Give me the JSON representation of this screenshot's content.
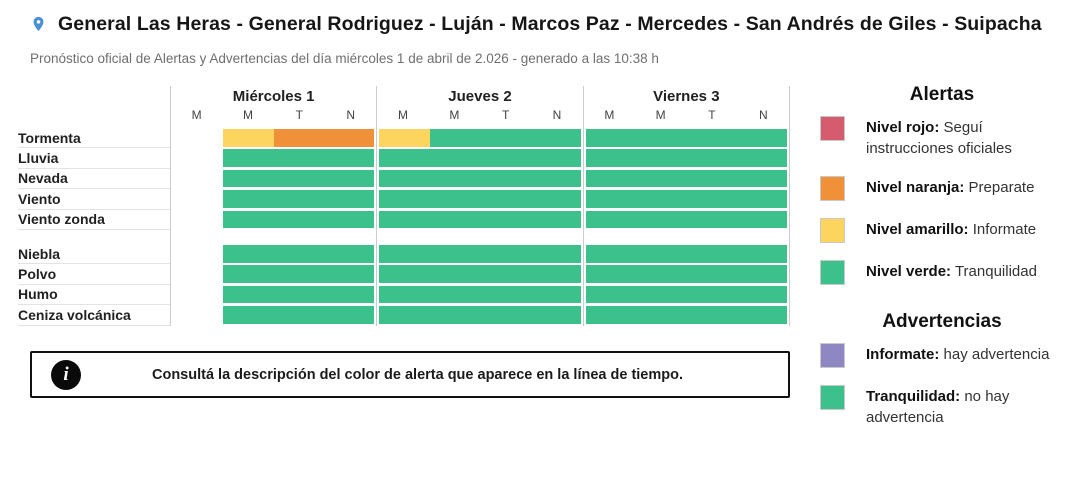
{
  "header": {
    "title": "General Las Heras - General Rodriguez - Luján - Marcos Paz - Mercedes - San Andrés de Giles - Suipacha",
    "subtitle": "Pronóstico oficial de Alertas y Advertencias del día miércoles 1 de abril de 2.026 - generado a las 10:38 h",
    "pin_color": "#4a90d5"
  },
  "timeline": {
    "days": [
      {
        "name": "Miércoles 1",
        "periods": [
          "M",
          "M",
          "T",
          "N"
        ]
      },
      {
        "name": "Jueves 2",
        "periods": [
          "M",
          "M",
          "T",
          "N"
        ]
      },
      {
        "name": "Viernes 3",
        "periods": [
          "M",
          "M",
          "T",
          "N"
        ]
      }
    ],
    "colors": {
      "green": "#3cc18d",
      "yellow": "#fdd55e",
      "orange": "#f0913a",
      "red": "#d55c6e",
      "purple": "#8f86c4",
      "none": "transparent"
    },
    "groups": [
      {
        "rows": [
          {
            "label": "Tormenta",
            "cells": [
              [
                "none",
                "yellow",
                "orange",
                "orange"
              ],
              [
                "yellow",
                "green",
                "green",
                "green"
              ],
              [
                "green",
                "green",
                "green",
                "green"
              ]
            ]
          },
          {
            "label": "Lluvia",
            "cells": [
              [
                "none",
                "green",
                "green",
                "green"
              ],
              [
                "green",
                "green",
                "green",
                "green"
              ],
              [
                "green",
                "green",
                "green",
                "green"
              ]
            ]
          },
          {
            "label": "Nevada",
            "cells": [
              [
                "none",
                "green",
                "green",
                "green"
              ],
              [
                "green",
                "green",
                "green",
                "green"
              ],
              [
                "green",
                "green",
                "green",
                "green"
              ]
            ]
          },
          {
            "label": "Viento",
            "cells": [
              [
                "none",
                "green",
                "green",
                "green"
              ],
              [
                "green",
                "green",
                "green",
                "green"
              ],
              [
                "green",
                "green",
                "green",
                "green"
              ]
            ]
          },
          {
            "label": "Viento zonda",
            "cells": [
              [
                "none",
                "green",
                "green",
                "green"
              ],
              [
                "green",
                "green",
                "green",
                "green"
              ],
              [
                "green",
                "green",
                "green",
                "green"
              ]
            ]
          }
        ]
      },
      {
        "rows": [
          {
            "label": "Niebla",
            "cells": [
              [
                "none",
                "green",
                "green",
                "green"
              ],
              [
                "green",
                "green",
                "green",
                "green"
              ],
              [
                "green",
                "green",
                "green",
                "green"
              ]
            ]
          },
          {
            "label": "Polvo",
            "cells": [
              [
                "none",
                "green",
                "green",
                "green"
              ],
              [
                "green",
                "green",
                "green",
                "green"
              ],
              [
                "green",
                "green",
                "green",
                "green"
              ]
            ]
          },
          {
            "label": "Humo",
            "cells": [
              [
                "none",
                "green",
                "green",
                "green"
              ],
              [
                "green",
                "green",
                "green",
                "green"
              ],
              [
                "green",
                "green",
                "green",
                "green"
              ]
            ]
          },
          {
            "label": "Ceniza volcánica",
            "cells": [
              [
                "none",
                "green",
                "green",
                "green"
              ],
              [
                "green",
                "green",
                "green",
                "green"
              ],
              [
                "green",
                "green",
                "green",
                "green"
              ]
            ]
          }
        ]
      }
    ]
  },
  "info": {
    "text": "Consultá la descripción del color de alerta que aparece en la línea de tiempo.",
    "icon": "info-i"
  },
  "legend": {
    "alerts_title": "Alertas",
    "alerts": [
      {
        "color": "#d55c6e",
        "name": "Nivel rojo:",
        "desc": " Seguí instrucciones oficiales"
      },
      {
        "color": "#f0913a",
        "name": "Nivel naranja:",
        "desc": " Preparate"
      },
      {
        "color": "#fdd55e",
        "name": "Nivel amarillo:",
        "desc": " Informate"
      },
      {
        "color": "#3cc18d",
        "name": "Nivel verde:",
        "desc": " Tranquilidad"
      }
    ],
    "warnings_title": "Advertencias",
    "warnings": [
      {
        "color": "#8f86c4",
        "name": "Informate:",
        "desc": " hay advertencia"
      },
      {
        "color": "#3cc18d",
        "name": "Tranquilidad:",
        "desc": " no hay advertencia"
      }
    ]
  }
}
